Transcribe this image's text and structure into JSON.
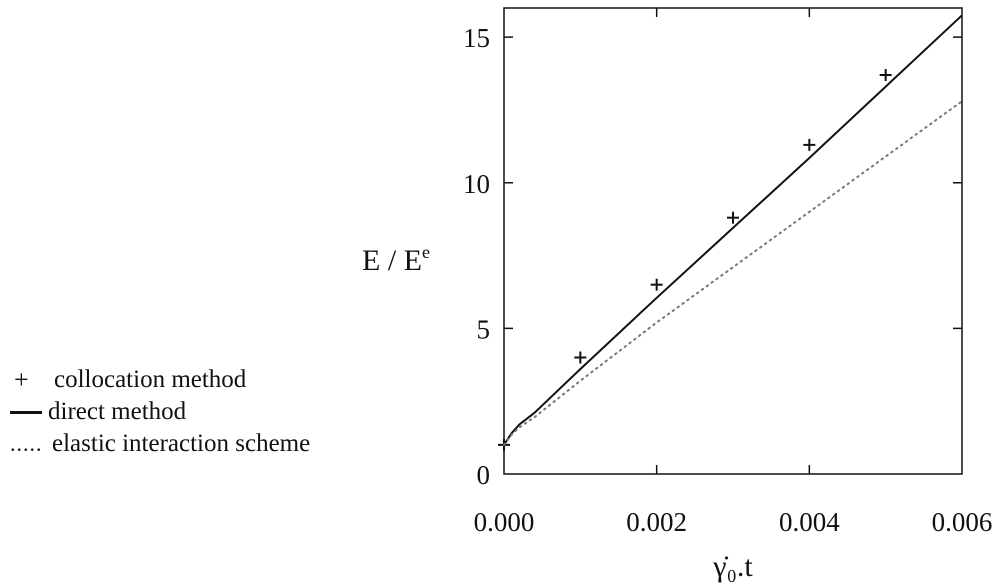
{
  "chart_data": {
    "type": "line",
    "xlabel": "γ̇₀.t",
    "ylabel": "E / E",
    "ylabel_superscript": "e",
    "xlim": [
      0.0,
      0.006
    ],
    "ylim": [
      0,
      16
    ],
    "x_ticks": [
      "0.000",
      "0.002",
      "0.004",
      "0.006"
    ],
    "y_ticks": [
      "0",
      "5",
      "10",
      "15"
    ],
    "x_tick_values": [
      0.0,
      0.002,
      0.004,
      0.006
    ],
    "y_tick_values": [
      0,
      5,
      10,
      15
    ],
    "grid": false,
    "legend_position": "left",
    "series": [
      {
        "name": "collocation method",
        "style": "plus-markers",
        "x": [
          0.0,
          0.001,
          0.002,
          0.003,
          0.004,
          0.005
        ],
        "y": [
          1.0,
          4.0,
          6.5,
          8.8,
          11.3,
          13.7
        ]
      },
      {
        "name": "direct method",
        "style": "solid",
        "x": [
          0.0,
          0.0001,
          0.0002,
          0.0004,
          0.001,
          0.002,
          0.003,
          0.004,
          0.005,
          0.006
        ],
        "y": [
          1.0,
          1.4,
          1.7,
          2.1,
          3.6,
          6.05,
          8.45,
          10.85,
          13.3,
          15.75
        ]
      },
      {
        "name": "elastic interaction scheme",
        "style": "dotted",
        "x": [
          0.0,
          0.0001,
          0.0002,
          0.0004,
          0.001,
          0.002,
          0.003,
          0.004,
          0.005,
          0.006
        ],
        "y": [
          1.0,
          1.35,
          1.6,
          1.95,
          3.2,
          5.2,
          7.1,
          9.0,
          10.9,
          12.8
        ]
      }
    ]
  },
  "legend": [
    {
      "symbol": "+",
      "label": "collocation method"
    },
    {
      "symbol": "—",
      "label": "direct method"
    },
    {
      "symbol": ".....",
      "label": "elastic interaction scheme"
    }
  ],
  "colors": {
    "ink": "#111111",
    "dotted": "#777777"
  }
}
